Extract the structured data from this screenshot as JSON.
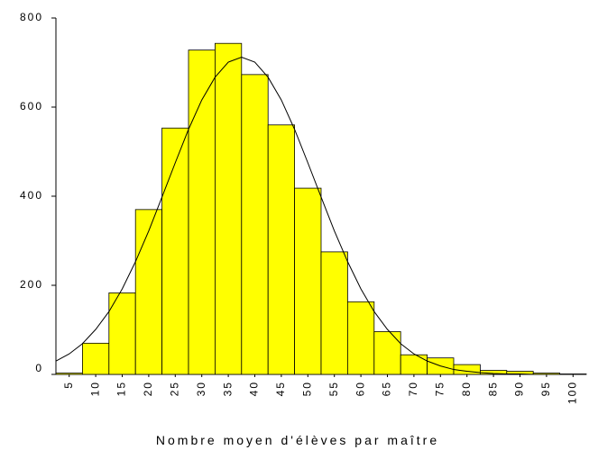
{
  "chart_data": {
    "type": "histogram",
    "x_label": "Nombre moyen d'élèves par maître",
    "bins": [
      2.5,
      7.5,
      12.5,
      17.5,
      22.5,
      27.5,
      32.5,
      37.5,
      42.5,
      47.5,
      52.5,
      57.5,
      62.5,
      67.5,
      72.5,
      77.5,
      82.5,
      87.5,
      92.5,
      97.5,
      102.5
    ],
    "values": [
      3,
      70,
      183,
      370,
      553,
      728,
      743,
      673,
      560,
      418,
      275,
      163,
      96,
      44,
      37,
      22,
      9,
      7,
      3,
      1
    ],
    "color": "#ffff00",
    "curve": {
      "x": [
        2.5,
        5,
        7.5,
        10,
        12.5,
        15,
        17.5,
        20,
        22.5,
        25,
        27.5,
        30,
        32.5,
        35,
        37.5,
        40,
        42.5,
        45,
        47.5,
        50,
        52.5,
        55,
        57.5,
        60,
        62.5,
        65,
        67.5,
        70,
        72.5,
        75,
        77.5,
        80,
        82.5,
        85,
        87.5,
        90,
        92.5,
        95,
        97.5,
        100,
        102.5
      ],
      "values": [
        30,
        46,
        69,
        101,
        141,
        192,
        253,
        322,
        398,
        475,
        550,
        616,
        667,
        701,
        712,
        701,
        667,
        616,
        550,
        475,
        398,
        322,
        253,
        192,
        141,
        101,
        69,
        46,
        30,
        19,
        11,
        7,
        4,
        2,
        1,
        1,
        0,
        0,
        0,
        0,
        0
      ],
      "color": "#000000"
    },
    "xlim": [
      2.5,
      102.5
    ],
    "xticks": [
      5,
      10,
      15,
      20,
      25,
      30,
      35,
      40,
      45,
      50,
      55,
      60,
      65,
      70,
      75,
      80,
      85,
      90,
      95,
      100
    ],
    "ylim": [
      0,
      800
    ],
    "yticks": [
      0,
      200,
      400,
      600,
      800
    ]
  }
}
